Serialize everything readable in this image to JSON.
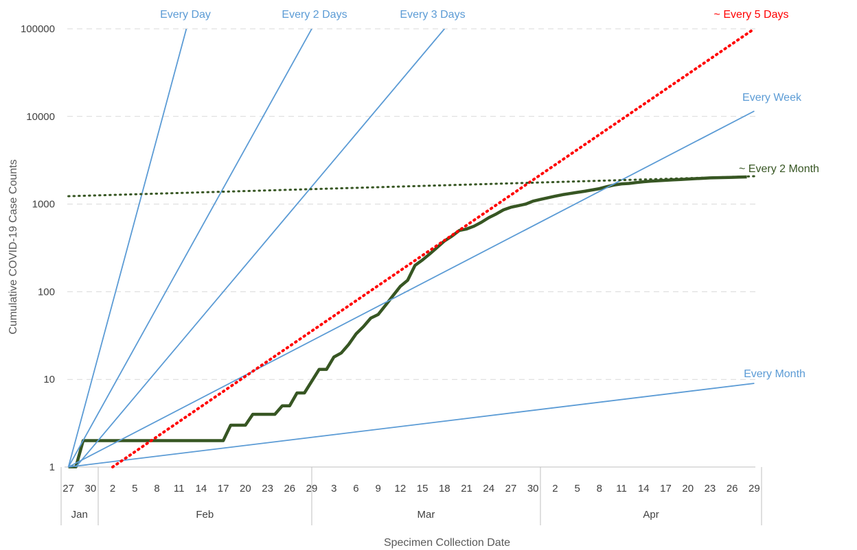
{
  "chart_data": {
    "type": "line",
    "xlabel": "Specimen Collection Date",
    "ylabel": "Cumulative COVID-19 Case Counts",
    "x_range": [
      "2020-01-27",
      "2020-04-29"
    ],
    "y_scale": "log",
    "ylim": [
      1,
      100000
    ],
    "y_ticks": [
      {
        "value": 1,
        "label": "1"
      },
      {
        "value": 10,
        "label": "10"
      },
      {
        "value": 100,
        "label": "100"
      },
      {
        "value": 1000,
        "label": "1000"
      },
      {
        "value": 10000,
        "label": "10000"
      },
      {
        "value": 100000,
        "label": "100000"
      }
    ],
    "x_ticks": [
      {
        "date": "2020-01-27",
        "label": "27"
      },
      {
        "date": "2020-01-30",
        "label": "30"
      },
      {
        "date": "2020-02-02",
        "label": "2"
      },
      {
        "date": "2020-02-05",
        "label": "5"
      },
      {
        "date": "2020-02-08",
        "label": "8"
      },
      {
        "date": "2020-02-11",
        "label": "11"
      },
      {
        "date": "2020-02-14",
        "label": "14"
      },
      {
        "date": "2020-02-17",
        "label": "17"
      },
      {
        "date": "2020-02-20",
        "label": "20"
      },
      {
        "date": "2020-02-23",
        "label": "23"
      },
      {
        "date": "2020-02-26",
        "label": "26"
      },
      {
        "date": "2020-02-29",
        "label": "29"
      },
      {
        "date": "2020-03-03",
        "label": "3"
      },
      {
        "date": "2020-03-06",
        "label": "6"
      },
      {
        "date": "2020-03-09",
        "label": "9"
      },
      {
        "date": "2020-03-12",
        "label": "12"
      },
      {
        "date": "2020-03-15",
        "label": "15"
      },
      {
        "date": "2020-03-18",
        "label": "18"
      },
      {
        "date": "2020-03-21",
        "label": "21"
      },
      {
        "date": "2020-03-24",
        "label": "24"
      },
      {
        "date": "2020-03-27",
        "label": "27"
      },
      {
        "date": "2020-03-30",
        "label": "30"
      },
      {
        "date": "2020-04-02",
        "label": "2"
      },
      {
        "date": "2020-04-05",
        "label": "5"
      },
      {
        "date": "2020-04-08",
        "label": "8"
      },
      {
        "date": "2020-04-11",
        "label": "11"
      },
      {
        "date": "2020-04-14",
        "label": "14"
      },
      {
        "date": "2020-04-17",
        "label": "17"
      },
      {
        "date": "2020-04-20",
        "label": "20"
      },
      {
        "date": "2020-04-23",
        "label": "23"
      },
      {
        "date": "2020-04-26",
        "label": "26"
      },
      {
        "date": "2020-04-29",
        "label": "29"
      }
    ],
    "months": [
      {
        "label": "Jan",
        "start": "2020-01-26",
        "end": "2020-01-31"
      },
      {
        "label": "Feb",
        "start": "2020-01-31",
        "end": "2020-02-29"
      },
      {
        "label": "Mar",
        "start": "2020-02-29",
        "end": "2020-03-31"
      },
      {
        "label": "Apr",
        "start": "2020-03-31",
        "end": "2020-04-30"
      }
    ],
    "grid": {
      "horizontal": true,
      "style": "dashed"
    },
    "series": [
      {
        "name": "",
        "color": "#375623",
        "style": "solid-thick",
        "points": [
          [
            "2020-01-27",
            1
          ],
          [
            "2020-01-28",
            1
          ],
          [
            "2020-01-29",
            2
          ],
          [
            "2020-01-30",
            2
          ],
          [
            "2020-02-17",
            2
          ],
          [
            "2020-02-18",
            3
          ],
          [
            "2020-02-20",
            3
          ],
          [
            "2020-02-21",
            4
          ],
          [
            "2020-02-24",
            4
          ],
          [
            "2020-02-25",
            5
          ],
          [
            "2020-02-26",
            5
          ],
          [
            "2020-02-27",
            7
          ],
          [
            "2020-02-28",
            7
          ],
          [
            "2020-03-01",
            13
          ],
          [
            "2020-03-02",
            13
          ],
          [
            "2020-03-03",
            18
          ],
          [
            "2020-03-04",
            20
          ],
          [
            "2020-03-05",
            25
          ],
          [
            "2020-03-06",
            33
          ],
          [
            "2020-03-07",
            40
          ],
          [
            "2020-03-08",
            50
          ],
          [
            "2020-03-09",
            55
          ],
          [
            "2020-03-10",
            70
          ],
          [
            "2020-03-11",
            90
          ],
          [
            "2020-03-12",
            115
          ],
          [
            "2020-03-13",
            135
          ],
          [
            "2020-03-14",
            200
          ],
          [
            "2020-03-15",
            230
          ],
          [
            "2020-03-16",
            270
          ],
          [
            "2020-03-17",
            320
          ],
          [
            "2020-03-18",
            380
          ],
          [
            "2020-03-19",
            430
          ],
          [
            "2020-03-20",
            500
          ],
          [
            "2020-03-21",
            520
          ],
          [
            "2020-03-22",
            560
          ],
          [
            "2020-03-23",
            620
          ],
          [
            "2020-03-24",
            700
          ],
          [
            "2020-03-25",
            770
          ],
          [
            "2020-03-26",
            860
          ],
          [
            "2020-03-27",
            920
          ],
          [
            "2020-03-28",
            960
          ],
          [
            "2020-03-29",
            1000
          ],
          [
            "2020-03-30",
            1080
          ],
          [
            "2020-03-31",
            1130
          ],
          [
            "2020-04-01",
            1180
          ],
          [
            "2020-04-02",
            1230
          ],
          [
            "2020-04-03",
            1280
          ],
          [
            "2020-04-04",
            1320
          ],
          [
            "2020-04-05",
            1360
          ],
          [
            "2020-04-06",
            1400
          ],
          [
            "2020-04-07",
            1450
          ],
          [
            "2020-04-08",
            1500
          ],
          [
            "2020-04-09",
            1580
          ],
          [
            "2020-04-10",
            1650
          ],
          [
            "2020-04-11",
            1700
          ],
          [
            "2020-04-12",
            1720
          ],
          [
            "2020-04-13",
            1760
          ],
          [
            "2020-04-14",
            1800
          ],
          [
            "2020-04-15",
            1830
          ],
          [
            "2020-04-16",
            1850
          ],
          [
            "2020-04-17",
            1870
          ],
          [
            "2020-04-18",
            1890
          ],
          [
            "2020-04-19",
            1910
          ],
          [
            "2020-04-20",
            1930
          ],
          [
            "2020-04-21",
            1950
          ],
          [
            "2020-04-22",
            1970
          ],
          [
            "2020-04-23",
            1990
          ],
          [
            "2020-04-24",
            2000
          ],
          [
            "2020-04-25",
            2010
          ],
          [
            "2020-04-26",
            2020
          ],
          [
            "2020-04-27",
            2030
          ],
          [
            "2020-04-28",
            2040
          ]
        ]
      },
      {
        "name": "Every Day",
        "color": "#5B9BD5",
        "style": "solid",
        "points": [
          [
            "2020-01-27",
            1
          ],
          [
            "2020-02-12",
            100000
          ]
        ]
      },
      {
        "name": "Every 2 Days",
        "color": "#5B9BD5",
        "style": "solid",
        "points": [
          [
            "2020-01-27",
            1
          ],
          [
            "2020-02-29",
            100000
          ]
        ]
      },
      {
        "name": "Every 3 Days",
        "color": "#5B9BD5",
        "style": "solid",
        "points": [
          [
            "2020-01-28",
            1
          ],
          [
            "2020-03-18",
            100000
          ]
        ]
      },
      {
        "name": "Every Week",
        "color": "#5B9BD5",
        "style": "solid",
        "points": [
          [
            "2020-01-27",
            1
          ],
          [
            "2020-04-29",
            11500
          ]
        ]
      },
      {
        "name": "Every Month",
        "color": "#5B9BD5",
        "style": "solid",
        "points": [
          [
            "2020-01-27",
            1
          ],
          [
            "2020-04-29",
            9
          ]
        ]
      },
      {
        "name": "~ Every 5 Days",
        "color": "#FF0000",
        "style": "dotted",
        "points": [
          [
            "2020-02-02",
            1
          ],
          [
            "2020-04-29",
            100000
          ]
        ]
      },
      {
        "name": "~ Every 2 Month",
        "color": "#375623",
        "style": "dotted",
        "points": [
          [
            "2020-01-27",
            1230
          ],
          [
            "2020-04-29",
            2080
          ]
        ]
      }
    ]
  }
}
